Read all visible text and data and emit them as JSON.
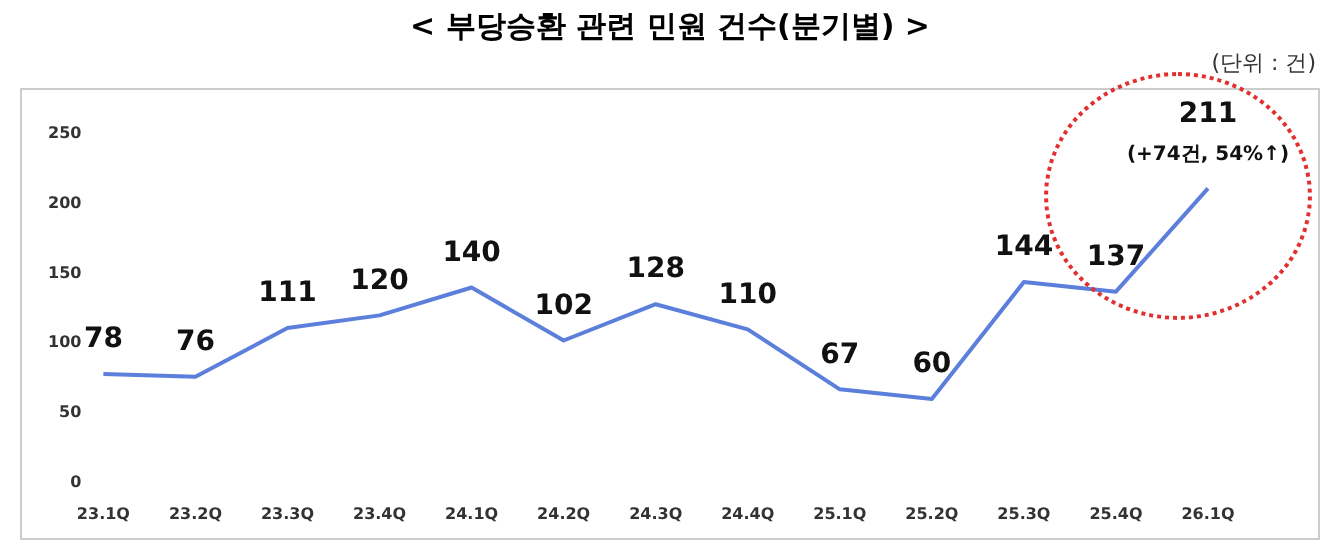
{
  "chart_data": {
    "type": "line",
    "title": "< 부당승환 관련 민원 건수(분기별) >",
    "annotations": [
      "(단위 : 건)",
      {
        "text": "(+74건, 54%↑)",
        "x": "26.1Q",
        "y": 211
      }
    ],
    "categories": [
      "23.1Q",
      "23.2Q",
      "23.3Q",
      "23.4Q",
      "24.1Q",
      "24.2Q",
      "24.3Q",
      "24.4Q",
      "25.1Q",
      "25.2Q",
      "25.3Q",
      "25.4Q",
      "26.1Q"
    ],
    "series": [
      {
        "color": "#5b7fdb",
        "values": [
          78,
          76,
          111,
          120,
          140,
          102,
          128,
          110,
          67,
          60,
          144,
          137,
          211
        ]
      }
    ],
    "ylim": [
      0,
      250
    ],
    "yticks": [
      0,
      50,
      100,
      150,
      200,
      250
    ],
    "grid": false,
    "legend": false,
    "marker": "none",
    "line_style": "solid",
    "data_labels": true
  }
}
